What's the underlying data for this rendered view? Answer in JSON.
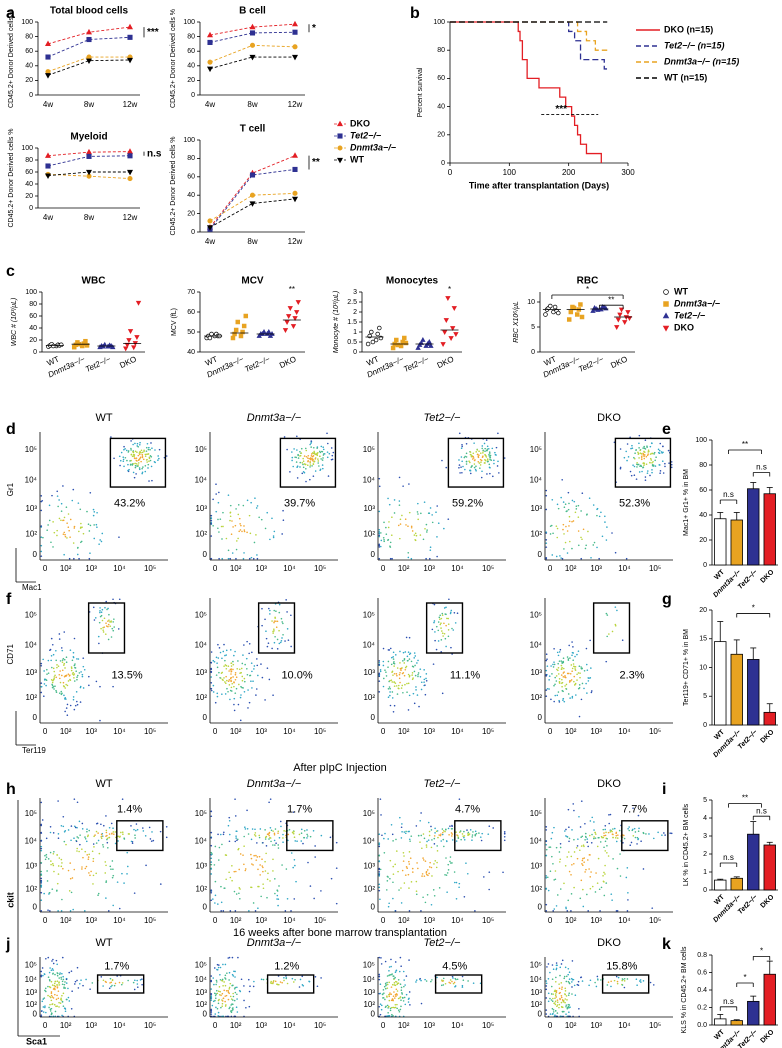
{
  "panel_labels": [
    "a",
    "b",
    "c",
    "d",
    "e",
    "f",
    "g",
    "h",
    "i",
    "j",
    "k"
  ],
  "chart_data": [
    {
      "type": "line",
      "title": "Total blood cells",
      "ylabel": "CD45.2+ Donor Derived cells %",
      "categories": [
        "4w",
        "8w",
        "12w"
      ],
      "ylim": [
        0,
        100
      ],
      "yticks": [
        0,
        20,
        40,
        60,
        80,
        100
      ],
      "annotation": "***",
      "series": [
        {
          "name": "DKO",
          "color": "#e31e24",
          "marker": "triangle",
          "values": [
            70,
            86,
            93
          ]
        },
        {
          "name": "Tet2−/−",
          "color": "#2e3192",
          "marker": "square",
          "values": [
            52,
            76,
            79
          ]
        },
        {
          "name": "Dnmt3a−/−",
          "color": "#e8a321",
          "marker": "circle",
          "values": [
            32,
            52,
            52
          ]
        },
        {
          "name": "WT",
          "color": "#000000",
          "marker": "triangle-down",
          "values": [
            27,
            47,
            48
          ]
        }
      ]
    },
    {
      "type": "line",
      "title": "B cell",
      "ylabel": "CD45.2+ Donor Derived cells %",
      "categories": [
        "4w",
        "8w",
        "12w"
      ],
      "ylim": [
        0,
        100
      ],
      "yticks": [
        0,
        20,
        40,
        60,
        80,
        100
      ],
      "annotation": "*",
      "series": [
        {
          "name": "DKO",
          "color": "#e31e24",
          "marker": "triangle",
          "values": [
            82,
            93,
            97
          ]
        },
        {
          "name": "Tet2−/−",
          "color": "#2e3192",
          "marker": "square",
          "values": [
            72,
            85,
            86
          ]
        },
        {
          "name": "Dnmt3a−/−",
          "color": "#e8a321",
          "marker": "circle",
          "values": [
            45,
            68,
            66
          ]
        },
        {
          "name": "WT",
          "color": "#000000",
          "marker": "triangle-down",
          "values": [
            36,
            52,
            52
          ]
        }
      ]
    },
    {
      "type": "line",
      "title": "Myeloid",
      "ylabel": "CD45.2+ Donor Derived cells %",
      "categories": [
        "4w",
        "8w",
        "12w"
      ],
      "ylim": [
        0,
        100
      ],
      "yticks": [
        0,
        20,
        40,
        60,
        80,
        100
      ],
      "annotation": "n.s",
      "series": [
        {
          "name": "DKO",
          "color": "#e31e24",
          "marker": "triangle",
          "values": [
            87,
            93,
            94
          ]
        },
        {
          "name": "Tet2−/−",
          "color": "#2e3192",
          "marker": "square",
          "values": [
            70,
            86,
            87
          ]
        },
        {
          "name": "Dnmt3a−/−",
          "color": "#e8a321",
          "marker": "circle",
          "values": [
            56,
            53,
            49
          ]
        },
        {
          "name": "WT",
          "color": "#000000",
          "marker": "triangle-down",
          "values": [
            54,
            60,
            60
          ]
        }
      ]
    },
    {
      "type": "line",
      "title": "T cell",
      "ylabel": "CD45.2+ Donor Derived cells %",
      "categories": [
        "4w",
        "8w",
        "12w"
      ],
      "ylim": [
        0,
        100
      ],
      "yticks": [
        0,
        20,
        40,
        60,
        80,
        100
      ],
      "annotation": "**",
      "series": [
        {
          "name": "DKO",
          "color": "#e31e24",
          "marker": "triangle",
          "values": [
            5,
            64,
            83
          ]
        },
        {
          "name": "Tet2−/−",
          "color": "#2e3192",
          "marker": "square",
          "values": [
            3,
            62,
            68
          ]
        },
        {
          "name": "Dnmt3a−/−",
          "color": "#e8a321",
          "marker": "circle",
          "values": [
            12,
            40,
            42
          ]
        },
        {
          "name": "WT",
          "color": "#000000",
          "marker": "triangle-down",
          "values": [
            5,
            31,
            36
          ]
        }
      ]
    },
    {
      "type": "step",
      "xlabel": "Time after transplantation (Days)",
      "ylabel": "Percent survival",
      "xlim": [
        0,
        300
      ],
      "xticks": [
        0,
        100,
        200,
        300
      ],
      "ylim": [
        0,
        100
      ],
      "yticks": [
        0,
        20,
        40,
        60,
        80,
        100
      ],
      "annotation": "***",
      "series": [
        {
          "name": "DKO (n=15)",
          "color": "#e31e24",
          "dashed": false,
          "x": [
            0,
            115,
            118,
            122,
            130,
            150,
            185,
            195,
            205,
            210,
            215,
            220,
            230,
            255
          ],
          "values": [
            100,
            93.3,
            86.7,
            73.3,
            60,
            53.3,
            46.7,
            40,
            33.3,
            26.7,
            20,
            13.3,
            6.7,
            0
          ]
        },
        {
          "name": "Tet2−/− (n=15)",
          "color": "#2e3192",
          "dashed": true,
          "x": [
            0,
            200,
            210,
            220,
            260,
            265
          ],
          "values": [
            100,
            93.3,
            86.7,
            73.3,
            66.7,
            66.7
          ]
        },
        {
          "name": "Dnmt3a−/− (n=15)",
          "color": "#e8a321",
          "dashed": true,
          "x": [
            0,
            215,
            230,
            245,
            265
          ],
          "values": [
            100,
            93.3,
            86.7,
            80,
            80
          ]
        },
        {
          "name": "WT (n=15)",
          "color": "#000000",
          "dashed": true,
          "x": [
            0,
            265
          ],
          "values": [
            100,
            100
          ]
        }
      ]
    },
    {
      "type": "dot",
      "title": "WBC",
      "ylabel": "WBC # (10³/μL)",
      "categories": [
        "WT",
        "Dnmt3a−/−",
        "Tet2−/−",
        "DKO"
      ],
      "markers": [
        "circle",
        "square",
        "triangle",
        "triangle-down"
      ],
      "colors": [
        "#ffffff",
        "#e8a321",
        "#2e3192",
        "#e31e24"
      ],
      "ylim": [
        0,
        100
      ],
      "yticks": [
        0,
        20,
        40,
        60,
        80,
        100
      ],
      "groups": [
        [
          9,
          10,
          11,
          12,
          13,
          11,
          10,
          12
        ],
        [
          8,
          10,
          12,
          14,
          16,
          18,
          13,
          11
        ],
        [
          8,
          9,
          10,
          11,
          9,
          10,
          12,
          8
        ],
        [
          6,
          8,
          12,
          15,
          20,
          25,
          35,
          82
        ]
      ],
      "medians": [
        11,
        13,
        10,
        14
      ]
    },
    {
      "type": "dot",
      "title": "MCV",
      "ylabel": "MCV (fL)",
      "categories": [
        "WT",
        "Dnmt3a−/−",
        "Tet2−/−",
        "DKO"
      ],
      "markers": [
        "circle",
        "square",
        "triangle",
        "triangle-down"
      ],
      "colors": [
        "#ffffff",
        "#e8a321",
        "#2e3192",
        "#e31e24"
      ],
      "ylim": [
        40,
        70
      ],
      "yticks": [
        40,
        50,
        60,
        70
      ],
      "groups": [
        [
          47,
          48,
          48,
          49,
          47,
          48,
          49,
          48
        ],
        [
          47,
          48,
          49,
          50,
          51,
          53,
          55,
          58
        ],
        [
          48,
          49,
          49,
          50,
          49,
          48,
          50,
          49
        ],
        [
          51,
          53,
          55,
          57,
          58,
          60,
          62,
          65
        ]
      ],
      "medians": [
        48,
        49.5,
        49,
        56
      ],
      "annotations": [
        "**"
      ]
    },
    {
      "type": "dot",
      "title": "Monocytes",
      "ylabel": "Monocyte # (10³/μL)",
      "categories": [
        "WT",
        "Dnmt3a−/−",
        "Tet2−/−",
        "DKO"
      ],
      "markers": [
        "circle",
        "square",
        "triangle",
        "triangle-down"
      ],
      "colors": [
        "#ffffff",
        "#e8a321",
        "#2e3192",
        "#e31e24"
      ],
      "ylim": [
        0,
        3
      ],
      "yticks": [
        0,
        0.5,
        1,
        1.5,
        2,
        2.5,
        3
      ],
      "groups": [
        [
          0.4,
          0.6,
          0.8,
          0.9,
          1.0,
          1.2,
          0.5,
          0.7
        ],
        [
          0.2,
          0.3,
          0.4,
          0.5,
          0.6,
          0.7,
          0.35,
          0.45
        ],
        [
          0.2,
          0.3,
          0.35,
          0.4,
          0.45,
          0.5,
          0.6,
          0.3
        ],
        [
          0.4,
          0.7,
          1.0,
          1.2,
          1.6,
          2.2,
          2.7,
          0.9
        ]
      ],
      "medians": [
        0.75,
        0.4,
        0.4,
        1.1
      ],
      "annotations": [
        "*"
      ]
    },
    {
      "type": "dot",
      "title": "RBC",
      "ylabel": "RBC X10⁶/μL",
      "categories": [
        "WT",
        "Dnmt3a−/−",
        "Tet2−/−",
        "DKO"
      ],
      "markers": [
        "circle",
        "square",
        "triangle",
        "triangle-down"
      ],
      "colors": [
        "#ffffff",
        "#e8a321",
        "#2e3192",
        "#e31e24"
      ],
      "ylim": [
        0,
        12
      ],
      "yticks": [
        0,
        5,
        10
      ],
      "groups": [
        [
          7.5,
          8,
          8.5,
          9,
          8.8,
          8.2,
          9.2,
          7.8
        ],
        [
          6.5,
          7.5,
          8,
          8.5,
          9,
          9.5,
          8.8,
          7
        ],
        [
          8.2,
          8.5,
          8.8,
          9,
          8.6,
          8.9,
          8.4,
          8.7
        ],
        [
          5,
          6,
          6.5,
          7,
          7.5,
          8,
          8.5,
          6.8
        ]
      ],
      "medians": [
        8.5,
        8.5,
        8.6,
        7
      ],
      "annotations": [
        "*",
        "**"
      ]
    },
    {
      "type": "bar",
      "ylabel": "Mac1+ Gr1+ % in BM",
      "categories": [
        "WT",
        "Dnmt3a−/−",
        "Tet2−/−",
        "DKO"
      ],
      "colors": [
        "#ffffff",
        "#e8a321",
        "#2e3192",
        "#e31e24"
      ],
      "values": [
        37,
        36,
        61,
        57
      ],
      "errors": [
        5,
        6,
        5,
        5
      ],
      "ylim": [
        0,
        100
      ],
      "yticks": [
        0,
        20,
        40,
        60,
        80,
        100
      ],
      "annotations": [
        "**",
        "n.s",
        "n.s"
      ]
    },
    {
      "type": "bar",
      "ylabel": "Ter119+ CD71+ % in BM",
      "categories": [
        "WT",
        "Dnmt3a−/−",
        "Tet2−/−",
        "DKO"
      ],
      "colors": [
        "#ffffff",
        "#e8a321",
        "#2e3192",
        "#e31e24"
      ],
      "values": [
        14.5,
        12.3,
        11.4,
        2.2
      ],
      "errors": [
        3.5,
        2.5,
        2,
        1.5
      ],
      "ylim": [
        0,
        20
      ],
      "yticks": [
        0,
        5,
        10,
        15,
        20
      ],
      "annotations": [
        "*"
      ]
    },
    {
      "type": "bar",
      "ylabel": "LK % in CD45.2+ BM cells",
      "categories": [
        "WT",
        "Dnmt3a−/−",
        "Tet2−/−",
        "DKO"
      ],
      "colors": [
        "#ffffff",
        "#e8a321",
        "#2e3192",
        "#e31e24"
      ],
      "values": [
        0.55,
        0.65,
        3.1,
        2.5
      ],
      "errors": [
        0.05,
        0.08,
        0.7,
        0.15
      ],
      "ylim": [
        0,
        5
      ],
      "yticks": [
        0,
        1,
        2,
        3,
        4,
        5
      ],
      "annotations": [
        "**",
        "n.s",
        "n.s"
      ]
    },
    {
      "type": "bar",
      "ylabel": "KLS % in CD45.2+ BM cells",
      "categories": [
        "WT",
        "Dnmt3a−/−",
        "Tet2−/−",
        "DKO"
      ],
      "colors": [
        "#ffffff",
        "#e8a321",
        "#2e3192",
        "#e31e24"
      ],
      "values": [
        0.07,
        0.05,
        0.27,
        0.58
      ],
      "errors": [
        0.05,
        0.01,
        0.06,
        0.15
      ],
      "ylim": [
        0,
        0.8
      ],
      "yticks": [
        {
          "value": 0,
          "label": "0.0"
        },
        0.2,
        0.4,
        0.6,
        0.8
      ],
      "annotations": [
        "*",
        "*",
        "n.s"
      ]
    }
  ],
  "flow": {
    "ticks": [
      "0",
      "10²",
      "10³",
      "10⁴",
      "10⁵"
    ],
    "panels": [
      {
        "titles": [
          "WT",
          "Dnmt3a−/−",
          "Tet2−/−",
          "DKO"
        ],
        "percents": [
          "43.2%",
          "39.7%",
          "59.2%",
          "52.3%"
        ],
        "xlabel": "Mac1",
        "ylabel": "Gr1"
      },
      {
        "percents": [
          "13.5%",
          "10.0%",
          "11.1%",
          "2.3%"
        ],
        "xlabel": "Ter119",
        "ylabel": "CD71"
      },
      {
        "heading": "After pIpC Injection",
        "titles": [
          "WT",
          "Dnmt3a−/−",
          "Tet2−/−",
          "DKO"
        ],
        "percents": [
          "1.4%",
          "1.7%",
          "4.7%",
          "7.7%"
        ]
      },
      {
        "heading": "16 weeks after bone marrow transplantation",
        "titles": [
          "WT",
          "Dnmt3a−/−",
          "Tet2−/−",
          "DKO"
        ],
        "percents": [
          "1.7%",
          "1.2%",
          "4.5%",
          "15.8%"
        ]
      }
    ],
    "shared_xlabel": "Sca1",
    "shared_ylabel": "ckit"
  }
}
